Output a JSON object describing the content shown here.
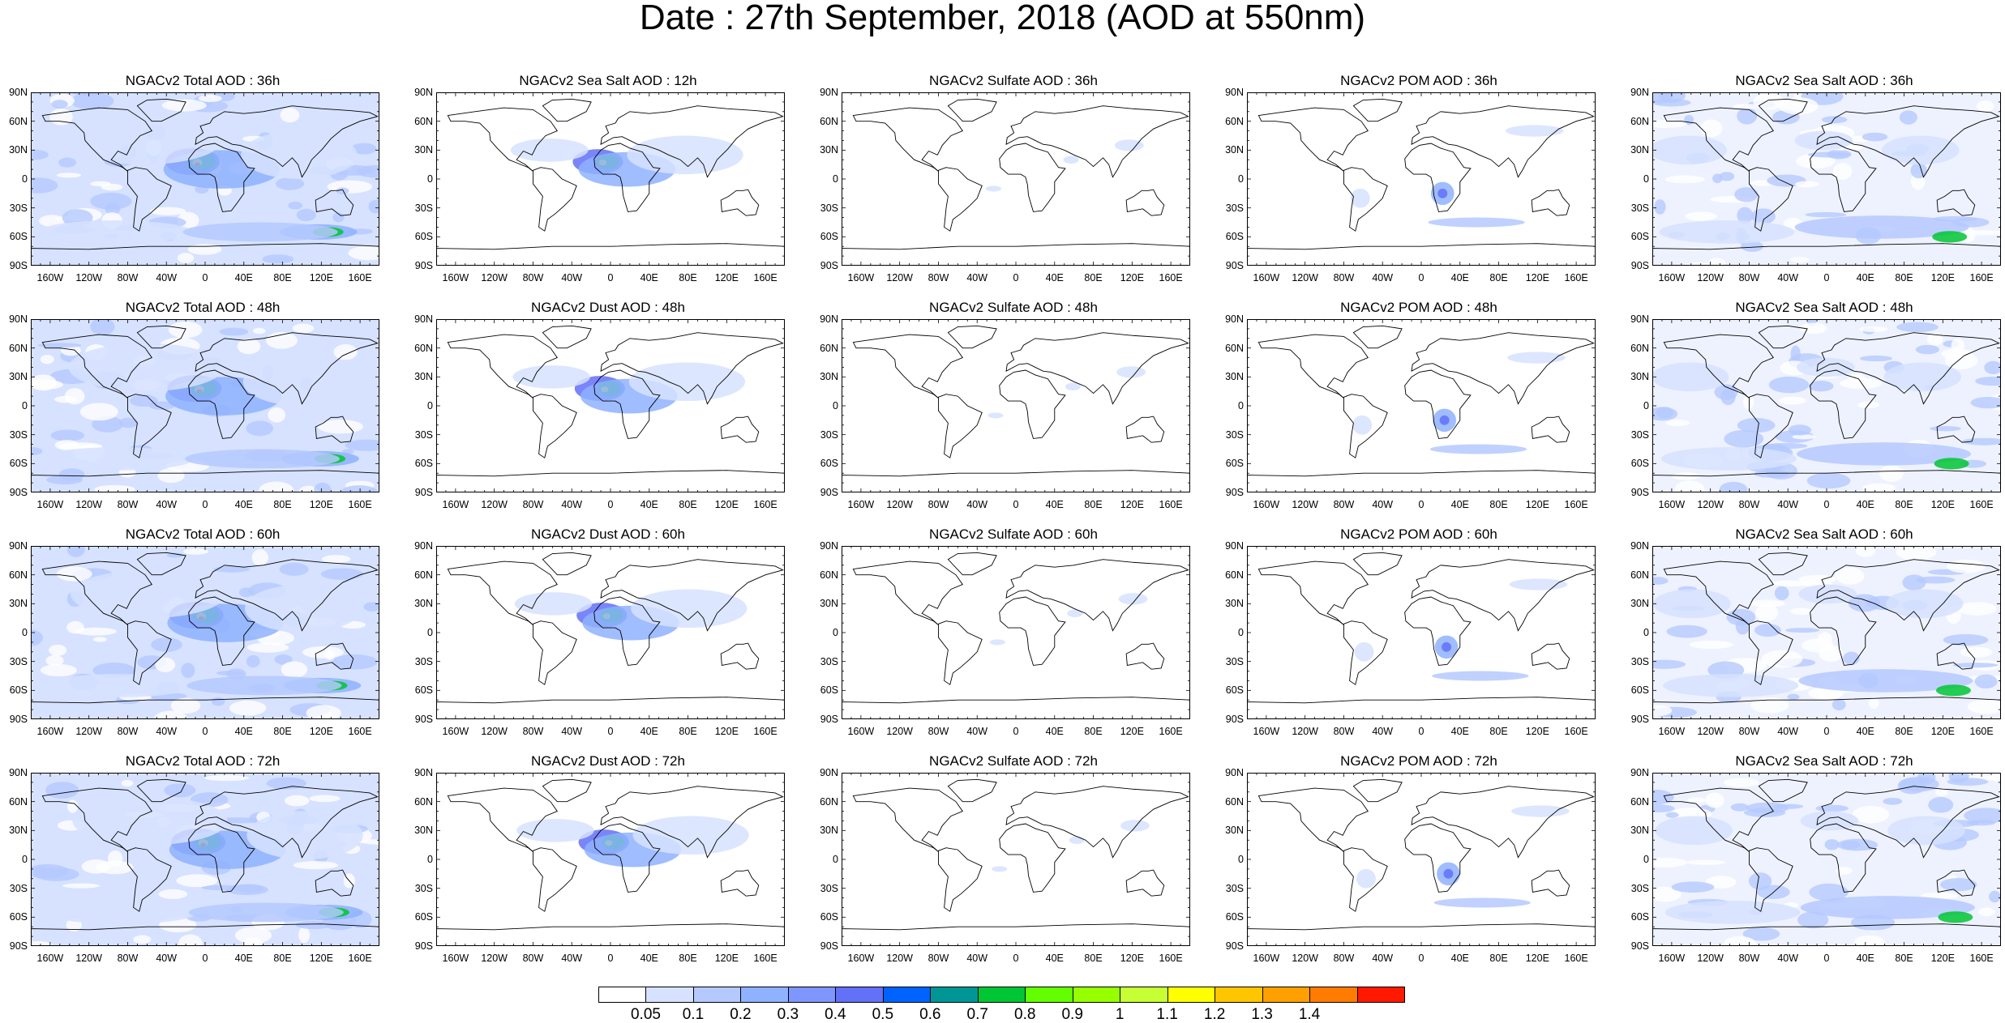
{
  "title": "Date : 27th September, 2018 (AOD at 550nm)",
  "lat_labels": [
    "90N",
    "60N",
    "30N",
    "0",
    "30S",
    "60S",
    "90S"
  ],
  "lon_labels": [
    "160W",
    "120W",
    "80W",
    "40W",
    "0",
    "40E",
    "80E",
    "120E",
    "160E"
  ],
  "panels": [
    [
      "NGACv2 Total AOD : 36h",
      "NGACv2 Sea Salt  AOD : 12h",
      "NGACv2 Sulfate AOD : 36h",
      "NGACv2 POM AOD : 36h",
      "NGACv2 Sea Salt  AOD : 36h"
    ],
    [
      "NGACv2 Total AOD : 48h",
      "NGACv2 Dust AOD : 48h",
      "NGACv2 Sulfate AOD : 48h",
      "NGACv2 POM AOD : 48h",
      "NGACv2 Sea Salt  AOD : 48h"
    ],
    [
      "NGACv2 Total AOD : 60h",
      "NGACv2 Dust AOD : 60h",
      "NGACv2 Sulfate AOD : 60h",
      "NGACv2 POM AOD : 60h",
      "NGACv2 Sea Salt  AOD : 60h"
    ],
    [
      "NGACv2 Total AOD : 72h",
      "NGACv2 Dust AOD : 72h",
      "NGACv2 Sulfate AOD : 72h",
      "NGACv2 POM AOD : 72h",
      "NGACv2 Sea Salt  AOD : 72h"
    ]
  ],
  "legend": {
    "labels": [
      "0.05",
      "0.1",
      "0.2",
      "0.3",
      "0.4",
      "0.5",
      "0.6",
      "0.7",
      "0.8",
      "0.9",
      "1",
      "1.1",
      "1.2",
      "1.3",
      "1.4"
    ],
    "colors": [
      "#ffffff",
      "#d6e2ff",
      "#b5c9ff",
      "#8eb2ff",
      "#7f96ff",
      "#6370f8",
      "#0063ff",
      "#009696",
      "#00c633",
      "#63ff00",
      "#96ff00",
      "#c6ff33",
      "#ffff00",
      "#ffc600",
      "#ffa000",
      "#ff7c00",
      "#ff1900"
    ]
  }
}
